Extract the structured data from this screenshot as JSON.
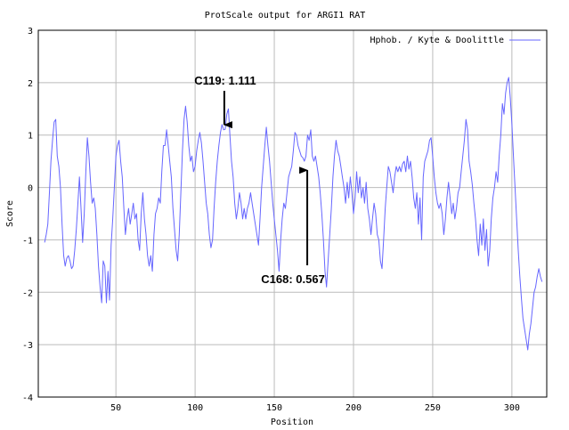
{
  "chart_data": {
    "type": "line",
    "title": "ProtScale output for ARGI1 RAT",
    "xlabel": "Position",
    "ylabel": "Score",
    "xlim": [
      1,
      322
    ],
    "ylim": [
      -4,
      3
    ],
    "x_ticks": [
      "50",
      "100",
      "150",
      "200",
      "250",
      "300"
    ],
    "y_ticks": [
      "-4",
      "-3",
      "-2",
      "-1",
      "0",
      "1",
      "2",
      "3"
    ],
    "grid": true,
    "legend_position": "top-right",
    "series": [
      {
        "name": "Hphob. / Kyte & Doolittle",
        "color": "#6666ff",
        "points": [
          [
            5,
            -1.05
          ],
          [
            6,
            -0.9
          ],
          [
            7,
            -0.7
          ],
          [
            8,
            -0.1
          ],
          [
            9,
            0.5
          ],
          [
            10,
            0.9
          ],
          [
            11,
            1.25
          ],
          [
            12,
            1.3
          ],
          [
            13,
            0.6
          ],
          [
            14,
            0.4
          ],
          [
            15,
            0.0
          ],
          [
            16,
            -0.7
          ],
          [
            17,
            -1.3
          ],
          [
            18,
            -1.5
          ],
          [
            19,
            -1.35
          ],
          [
            20,
            -1.3
          ],
          [
            21,
            -1.4
          ],
          [
            22,
            -1.55
          ],
          [
            23,
            -1.5
          ],
          [
            24,
            -1.2
          ],
          [
            25,
            -0.8
          ],
          [
            26,
            -0.3
          ],
          [
            27,
            0.2
          ],
          [
            28,
            -0.4
          ],
          [
            29,
            -1.05
          ],
          [
            30,
            -0.5
          ],
          [
            31,
            0.3
          ],
          [
            32,
            0.95
          ],
          [
            33,
            0.6
          ],
          [
            34,
            0.1
          ],
          [
            35,
            -0.3
          ],
          [
            36,
            -0.2
          ],
          [
            37,
            -0.4
          ],
          [
            38,
            -0.9
          ],
          [
            39,
            -1.5
          ],
          [
            40,
            -1.9
          ],
          [
            41,
            -2.2
          ],
          [
            42,
            -1.4
          ],
          [
            43,
            -1.5
          ],
          [
            44,
            -2.2
          ],
          [
            45,
            -1.6
          ],
          [
            46,
            -2.15
          ],
          [
            47,
            -1.1
          ],
          [
            48,
            -0.6
          ],
          [
            49,
            0.0
          ],
          [
            50,
            0.6
          ],
          [
            51,
            0.8
          ],
          [
            52,
            0.9
          ],
          [
            53,
            0.5
          ],
          [
            54,
            0.2
          ],
          [
            55,
            -0.4
          ],
          [
            56,
            -0.9
          ],
          [
            57,
            -0.6
          ],
          [
            58,
            -0.4
          ],
          [
            59,
            -0.7
          ],
          [
            60,
            -0.5
          ],
          [
            61,
            -0.3
          ],
          [
            62,
            -0.6
          ],
          [
            63,
            -0.5
          ],
          [
            64,
            -1.0
          ],
          [
            65,
            -1.2
          ],
          [
            66,
            -0.5
          ],
          [
            67,
            -0.1
          ],
          [
            68,
            -0.6
          ],
          [
            69,
            -0.9
          ],
          [
            70,
            -1.3
          ],
          [
            71,
            -1.5
          ],
          [
            72,
            -1.3
          ],
          [
            73,
            -1.6
          ],
          [
            74,
            -0.9
          ],
          [
            75,
            -0.5
          ],
          [
            76,
            -0.4
          ],
          [
            77,
            -0.2
          ],
          [
            78,
            -0.3
          ],
          [
            79,
            0.3
          ],
          [
            80,
            0.8
          ],
          [
            81,
            0.8
          ],
          [
            82,
            1.1
          ],
          [
            83,
            0.8
          ],
          [
            84,
            0.5
          ],
          [
            85,
            0.2
          ],
          [
            86,
            -0.4
          ],
          [
            87,
            -0.8
          ],
          [
            88,
            -1.2
          ],
          [
            89,
            -1.4
          ],
          [
            90,
            -0.9
          ],
          [
            91,
            -0.1
          ],
          [
            92,
            0.7
          ],
          [
            93,
            1.3
          ],
          [
            94,
            1.55
          ],
          [
            95,
            1.25
          ],
          [
            96,
            0.8
          ],
          [
            97,
            0.5
          ],
          [
            98,
            0.6
          ],
          [
            99,
            0.3
          ],
          [
            100,
            0.4
          ],
          [
            101,
            0.7
          ],
          [
            102,
            0.9
          ],
          [
            103,
            1.05
          ],
          [
            104,
            0.85
          ],
          [
            105,
            0.5
          ],
          [
            106,
            0.1
          ],
          [
            107,
            -0.3
          ],
          [
            108,
            -0.5
          ],
          [
            109,
            -0.9
          ],
          [
            110,
            -1.15
          ],
          [
            111,
            -1.0
          ],
          [
            112,
            -0.4
          ],
          [
            113,
            0.1
          ],
          [
            114,
            0.5
          ],
          [
            115,
            0.8
          ],
          [
            116,
            1.05
          ],
          [
            117,
            1.2
          ],
          [
            118,
            1.1
          ],
          [
            119,
            1.111
          ],
          [
            120,
            1.4
          ],
          [
            121,
            1.5
          ],
          [
            122,
            1.0
          ],
          [
            123,
            0.5
          ],
          [
            124,
            0.2
          ],
          [
            125,
            -0.3
          ],
          [
            126,
            -0.6
          ],
          [
            127,
            -0.4
          ],
          [
            128,
            -0.1
          ],
          [
            129,
            -0.3
          ],
          [
            130,
            -0.6
          ],
          [
            131,
            -0.4
          ],
          [
            132,
            -0.6
          ],
          [
            133,
            -0.4
          ],
          [
            134,
            -0.3
          ],
          [
            135,
            -0.1
          ],
          [
            136,
            -0.3
          ],
          [
            137,
            -0.5
          ],
          [
            138,
            -0.7
          ],
          [
            139,
            -0.9
          ],
          [
            140,
            -1.1
          ],
          [
            141,
            -0.6
          ],
          [
            142,
            0.0
          ],
          [
            143,
            0.4
          ],
          [
            144,
            0.8
          ],
          [
            145,
            1.15
          ],
          [
            146,
            0.8
          ],
          [
            147,
            0.5
          ],
          [
            148,
            0.1
          ],
          [
            149,
            -0.3
          ],
          [
            150,
            -0.6
          ],
          [
            151,
            -0.9
          ],
          [
            152,
            -1.2
          ],
          [
            153,
            -1.6
          ],
          [
            154,
            -1.0
          ],
          [
            155,
            -0.6
          ],
          [
            156,
            -0.3
          ],
          [
            157,
            -0.4
          ],
          [
            158,
            -0.1
          ],
          [
            159,
            0.2
          ],
          [
            160,
            0.3
          ],
          [
            161,
            0.4
          ],
          [
            162,
            0.7
          ],
          [
            163,
            1.05
          ],
          [
            164,
            1.0
          ],
          [
            165,
            0.8
          ],
          [
            166,
            0.7
          ],
          [
            167,
            0.6
          ],
          [
            168,
            0.567
          ],
          [
            169,
            0.5
          ],
          [
            170,
            0.6
          ],
          [
            171,
            1.0
          ],
          [
            172,
            0.9
          ],
          [
            173,
            1.1
          ],
          [
            174,
            0.6
          ],
          [
            175,
            0.5
          ],
          [
            176,
            0.6
          ],
          [
            177,
            0.4
          ],
          [
            178,
            0.2
          ],
          [
            179,
            -0.1
          ],
          [
            180,
            -0.5
          ],
          [
            181,
            -1.0
          ],
          [
            182,
            -1.6
          ],
          [
            183,
            -1.9
          ],
          [
            184,
            -1.4
          ],
          [
            185,
            -0.9
          ],
          [
            186,
            -0.4
          ],
          [
            187,
            0.2
          ],
          [
            188,
            0.6
          ],
          [
            189,
            0.9
          ],
          [
            190,
            0.7
          ],
          [
            191,
            0.6
          ],
          [
            192,
            0.4
          ],
          [
            193,
            0.2
          ],
          [
            194,
            0.0
          ],
          [
            195,
            -0.3
          ],
          [
            196,
            0.1
          ],
          [
            197,
            -0.2
          ],
          [
            198,
            0.2
          ],
          [
            199,
            -0.1
          ],
          [
            200,
            -0.5
          ],
          [
            201,
            -0.2
          ],
          [
            202,
            0.3
          ],
          [
            203,
            -0.1
          ],
          [
            204,
            0.2
          ],
          [
            205,
            -0.2
          ],
          [
            206,
            0.0
          ],
          [
            207,
            -0.3
          ],
          [
            208,
            0.1
          ],
          [
            209,
            -0.4
          ],
          [
            210,
            -0.6
          ],
          [
            211,
            -0.9
          ],
          [
            212,
            -0.6
          ],
          [
            213,
            -0.3
          ],
          [
            214,
            -0.5
          ],
          [
            215,
            -0.9
          ],
          [
            216,
            -1.0
          ],
          [
            217,
            -1.4
          ],
          [
            218,
            -1.55
          ],
          [
            219,
            -1.0
          ],
          [
            220,
            -0.4
          ],
          [
            221,
            0.0
          ],
          [
            222,
            0.4
          ],
          [
            223,
            0.3
          ],
          [
            224,
            0.1
          ],
          [
            225,
            -0.1
          ],
          [
            226,
            0.2
          ],
          [
            227,
            0.4
          ],
          [
            228,
            0.3
          ],
          [
            229,
            0.4
          ],
          [
            230,
            0.3
          ],
          [
            231,
            0.45
          ],
          [
            232,
            0.5
          ],
          [
            233,
            0.3
          ],
          [
            234,
            0.6
          ],
          [
            235,
            0.35
          ],
          [
            236,
            0.5
          ],
          [
            237,
            0.2
          ],
          [
            238,
            -0.2
          ],
          [
            239,
            -0.4
          ],
          [
            240,
            -0.1
          ],
          [
            241,
            -0.7
          ],
          [
            242,
            -0.2
          ],
          [
            243,
            -1.0
          ],
          [
            244,
            0.2
          ],
          [
            245,
            0.5
          ],
          [
            246,
            0.6
          ],
          [
            247,
            0.7
          ],
          [
            248,
            0.9
          ],
          [
            249,
            0.95
          ],
          [
            250,
            0.6
          ],
          [
            251,
            0.2
          ],
          [
            252,
            -0.1
          ],
          [
            253,
            -0.3
          ],
          [
            254,
            -0.4
          ],
          [
            255,
            -0.3
          ],
          [
            256,
            -0.5
          ],
          [
            257,
            -0.9
          ],
          [
            258,
            -0.6
          ],
          [
            259,
            -0.2
          ],
          [
            260,
            0.1
          ],
          [
            261,
            -0.2
          ],
          [
            262,
            -0.5
          ],
          [
            263,
            -0.3
          ],
          [
            264,
            -0.6
          ],
          [
            265,
            -0.4
          ],
          [
            266,
            -0.1
          ],
          [
            267,
            0.0
          ],
          [
            268,
            0.3
          ],
          [
            269,
            0.6
          ],
          [
            270,
            0.9
          ],
          [
            271,
            1.3
          ],
          [
            272,
            1.1
          ],
          [
            273,
            0.5
          ],
          [
            274,
            0.3
          ],
          [
            275,
            0.05
          ],
          [
            276,
            -0.3
          ],
          [
            277,
            -0.6
          ],
          [
            278,
            -1.0
          ],
          [
            279,
            -1.3
          ],
          [
            280,
            -0.7
          ],
          [
            281,
            -1.1
          ],
          [
            282,
            -0.6
          ],
          [
            283,
            -1.2
          ],
          [
            284,
            -0.8
          ],
          [
            285,
            -1.5
          ],
          [
            286,
            -1.2
          ],
          [
            287,
            -0.6
          ],
          [
            288,
            -0.2
          ],
          [
            289,
            0.0
          ],
          [
            290,
            0.3
          ],
          [
            291,
            0.1
          ],
          [
            292,
            0.6
          ],
          [
            293,
            1.0
          ],
          [
            294,
            1.6
          ],
          [
            295,
            1.4
          ],
          [
            296,
            1.8
          ],
          [
            297,
            2.0
          ],
          [
            298,
            2.1
          ],
          [
            299,
            1.7
          ],
          [
            300,
            1.2
          ],
          [
            301,
            0.6
          ],
          [
            302,
            0.0
          ],
          [
            303,
            -0.6
          ],
          [
            304,
            -1.2
          ],
          [
            305,
            -1.7
          ],
          [
            306,
            -2.1
          ],
          [
            307,
            -2.5
          ],
          [
            308,
            -2.7
          ],
          [
            309,
            -2.9
          ],
          [
            310,
            -3.1
          ],
          [
            311,
            -2.8
          ],
          [
            312,
            -2.6
          ],
          [
            313,
            -2.3
          ],
          [
            314,
            -2.0
          ],
          [
            315,
            -1.9
          ],
          [
            316,
            -1.7
          ],
          [
            317,
            -1.55
          ],
          [
            318,
            -1.7
          ],
          [
            319,
            -1.8
          ]
        ]
      }
    ],
    "annotations": [
      {
        "label": "C119: 1.111",
        "x": 119,
        "y": 1.111
      },
      {
        "label": "C168: 0.567",
        "x": 168,
        "y": 0.567
      }
    ]
  }
}
